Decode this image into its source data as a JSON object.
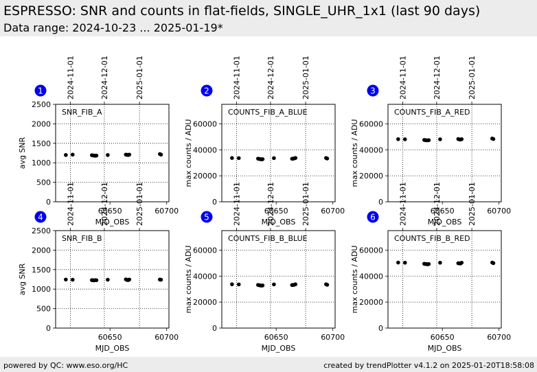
{
  "header": {
    "title": "ESPRESSO: SNR and counts in flat-fields, SINGLE_UHR_1x1 (last 90 days)",
    "subtitle": "Data range: 2024-10-23 ... 2025-01-19*"
  },
  "footer": {
    "left": "powered by QC: www.eso.org/HC",
    "right": "created by trendPlotter v4.1.2 on 2025-01-20T18:58:08"
  },
  "colors": {
    "badge": "#0000ee",
    "points": "#000000",
    "background": "#ececec"
  },
  "chart_data": [
    {
      "type": "scatter",
      "panel": "1",
      "series_name": "SNR_FIB_A",
      "xlabel": "MJD_OBS",
      "ylabel": "avg SNR",
      "xlim": [
        60602,
        60702
      ],
      "ylim": [
        0,
        2500
      ],
      "xticks": [
        60650,
        60700
      ],
      "yticks": [
        0,
        500,
        1000,
        1500,
        2000,
        2500
      ],
      "date_lines": [
        {
          "label": "2024-11-01",
          "mjd": 60615
        },
        {
          "label": "2024-12-01",
          "mjd": 60645
        },
        {
          "label": "2025-01-01",
          "mjd": 60676
        }
      ],
      "x": [
        60611,
        60617,
        60634,
        60635,
        60636,
        60637,
        60638,
        60648,
        60664,
        60665,
        60666,
        60667,
        60694,
        60695
      ],
      "y": [
        1200,
        1210,
        1195,
        1190,
        1185,
        1180,
        1185,
        1200,
        1210,
        1205,
        1200,
        1210,
        1225,
        1210
      ]
    },
    {
      "type": "scatter",
      "panel": "2",
      "series_name": "COUNTS_FIB_A_BLUE",
      "xlabel": "MJD_OBS",
      "ylabel": "max counts / ADU",
      "xlim": [
        60602,
        60702
      ],
      "ylim": [
        0,
        75000
      ],
      "xticks": [
        60650,
        60700
      ],
      "yticks": [
        0,
        20000,
        40000,
        60000
      ],
      "date_lines": [
        {
          "label": "2024-11-01",
          "mjd": 60615
        },
        {
          "label": "2024-12-01",
          "mjd": 60645
        },
        {
          "label": "2025-01-01",
          "mjd": 60676
        }
      ],
      "x": [
        60611,
        60617,
        60634,
        60635,
        60636,
        60637,
        60638,
        60648,
        60664,
        60665,
        60666,
        60667,
        60694,
        60695
      ],
      "y": [
        33700,
        33600,
        33200,
        33000,
        32800,
        32700,
        32800,
        33600,
        33100,
        33200,
        33400,
        33700,
        33700,
        33300
      ]
    },
    {
      "type": "scatter",
      "panel": "3",
      "series_name": "COUNTS_FIB_A_RED",
      "xlabel": "MJD_OBS",
      "ylabel": "max counts / ADU",
      "xlim": [
        60602,
        60702
      ],
      "ylim": [
        0,
        75000
      ],
      "xticks": [
        60650,
        60700
      ],
      "yticks": [
        0,
        20000,
        40000,
        60000
      ],
      "date_lines": [
        {
          "label": "2024-11-01",
          "mjd": 60615
        },
        {
          "label": "2024-12-01",
          "mjd": 60645
        },
        {
          "label": "2025-01-01",
          "mjd": 60676
        }
      ],
      "x": [
        60611,
        60617,
        60634,
        60635,
        60636,
        60637,
        60638,
        60648,
        60664,
        60665,
        60666,
        60667,
        60694,
        60695
      ],
      "y": [
        48200,
        48100,
        47600,
        47400,
        47300,
        47300,
        47400,
        48100,
        48300,
        48000,
        47900,
        48200,
        48700,
        48300
      ]
    },
    {
      "type": "scatter",
      "panel": "4",
      "series_name": "SNR_FIB_B",
      "xlabel": "MJD_OBS",
      "ylabel": "avg SNR",
      "xlim": [
        60602,
        60702
      ],
      "ylim": [
        0,
        2500
      ],
      "xticks": [
        60650,
        60700
      ],
      "yticks": [
        0,
        500,
        1000,
        1500,
        2000,
        2500
      ],
      "date_lines": [
        {
          "label": "2024-11-01",
          "mjd": 60615
        },
        {
          "label": "2024-12-01",
          "mjd": 60645
        },
        {
          "label": "2025-01-01",
          "mjd": 60676
        }
      ],
      "x": [
        60611,
        60617,
        60634,
        60635,
        60636,
        60637,
        60638,
        60648,
        60664,
        60665,
        60666,
        60667,
        60694,
        60695
      ],
      "y": [
        1245,
        1240,
        1230,
        1225,
        1225,
        1230,
        1228,
        1240,
        1250,
        1235,
        1230,
        1245,
        1245,
        1240
      ]
    },
    {
      "type": "scatter",
      "panel": "5",
      "series_name": "COUNTS_FIB_B_BLUE",
      "xlabel": "MJD_OBS",
      "ylabel": "max counts / ADU",
      "xlim": [
        60602,
        60702
      ],
      "ylim": [
        0,
        75000
      ],
      "xticks": [
        60650,
        60700
      ],
      "yticks": [
        0,
        20000,
        40000,
        60000
      ],
      "date_lines": [
        {
          "label": "2024-11-01",
          "mjd": 60615
        },
        {
          "label": "2024-12-01",
          "mjd": 60645
        },
        {
          "label": "2025-01-01",
          "mjd": 60676
        }
      ],
      "x": [
        60611,
        60617,
        60634,
        60635,
        60636,
        60637,
        60638,
        60648,
        60664,
        60665,
        60666,
        60667,
        60694,
        60695
      ],
      "y": [
        33700,
        33600,
        33200,
        33000,
        32800,
        32700,
        32800,
        33600,
        33100,
        33200,
        33400,
        33700,
        33700,
        33300
      ]
    },
    {
      "type": "scatter",
      "panel": "6",
      "series_name": "COUNTS_FIB_B_RED",
      "xlabel": "MJD_OBS",
      "ylabel": "max counts / ADU",
      "xlim": [
        60602,
        60702
      ],
      "ylim": [
        0,
        75000
      ],
      "xticks": [
        60650,
        60700
      ],
      "yticks": [
        0,
        20000,
        40000,
        60000
      ],
      "date_lines": [
        {
          "label": "2024-11-01",
          "mjd": 60615
        },
        {
          "label": "2024-12-01",
          "mjd": 60645
        },
        {
          "label": "2025-01-01",
          "mjd": 60676
        }
      ],
      "x": [
        60611,
        60617,
        60634,
        60635,
        60636,
        60637,
        60638,
        60648,
        60664,
        60665,
        60666,
        60667,
        60694,
        60695
      ],
      "y": [
        50400,
        50300,
        49500,
        49300,
        49200,
        49100,
        49300,
        50300,
        49900,
        49800,
        49700,
        50300,
        50400,
        50000
      ]
    }
  ]
}
